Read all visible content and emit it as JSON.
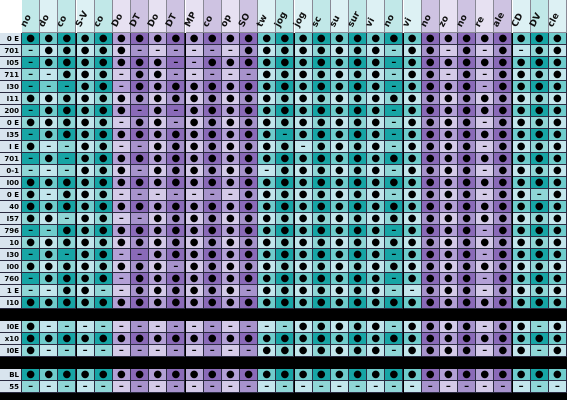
{
  "columns": [
    "no",
    "do",
    "co",
    "S-V",
    "co",
    "Do",
    "DT",
    "Do",
    "DT",
    "MP",
    "co",
    "op",
    "SO",
    "tw",
    "jog",
    "jog",
    "sc",
    "su",
    "sur",
    "vi",
    "no",
    "vi",
    "no",
    "zo",
    "no",
    "re",
    "ale",
    "CD",
    "DV",
    "cle"
  ],
  "groups": [
    {
      "rows": [
        {
          "label": "0 E",
          "cells": [
            "●",
            "●",
            "●",
            "●",
            "●",
            "●",
            "●",
            "●",
            "●",
            "●",
            "●",
            "●",
            "●",
            "●",
            "●",
            "●",
            "●",
            "●",
            "●",
            "●",
            "●",
            "●",
            "●",
            "●",
            "●",
            "●",
            "●",
            "●",
            "●",
            "●"
          ]
        },
        {
          "label": "701",
          "cells": [
            "–",
            "●",
            "●",
            "●",
            "●",
            "●",
            "–",
            "–",
            "–",
            "–",
            "–",
            "–",
            "●",
            "●",
            "●",
            "●",
            "●",
            "●",
            "●",
            "●",
            "–",
            "●",
            "●",
            "–",
            "●",
            "–",
            "●",
            "–",
            "●",
            "●"
          ]
        },
        {
          "label": "I05",
          "cells": [
            "–",
            "●",
            "●",
            "●",
            "●",
            "●",
            "●",
            "●",
            "–",
            "–",
            "●",
            "●",
            "●",
            "●",
            "●",
            "●",
            "●",
            "●",
            "●",
            "●",
            "–",
            "●",
            "●",
            "●",
            "●",
            "●",
            "●",
            "●",
            "●",
            "●"
          ]
        },
        {
          "label": "711",
          "cells": [
            "–",
            "–",
            "●",
            "●",
            "●",
            "–",
            "●",
            "●",
            "–",
            "–",
            "–",
            "–",
            "–",
            "●",
            "●",
            "●",
            "●",
            "●",
            "●",
            "●",
            "–",
            "●",
            "●",
            "–",
            "●",
            "–",
            "●",
            "●",
            "●",
            "●"
          ]
        },
        {
          "label": "I30",
          "cells": [
            "–",
            "–",
            "–",
            "●",
            "●",
            "–",
            "●",
            "●",
            "●",
            "●",
            "●",
            "●",
            "●",
            "●",
            "●",
            "●",
            "●",
            "●",
            "●",
            "●",
            "–",
            "●",
            "●",
            "●",
            "●",
            "–",
            "●",
            "●",
            "●",
            "●"
          ]
        },
        {
          "label": "I11",
          "cells": [
            "●",
            "●",
            "●",
            "●",
            "●",
            "●",
            "●",
            "●",
            "●",
            "●",
            "●",
            "●",
            "●",
            "●",
            "●",
            "●",
            "●",
            "●",
            "●",
            "●",
            "●",
            "●",
            "●",
            "●",
            "●",
            "●",
            "●",
            "●",
            "●",
            "●"
          ]
        },
        {
          "label": "200",
          "cells": [
            "–",
            "●",
            "●",
            "●",
            "●",
            "●",
            "–",
            "●",
            "–",
            "●",
            "●",
            "●",
            "●",
            "●",
            "●",
            "●",
            "●",
            "●",
            "●",
            "●",
            "–",
            "●",
            "●",
            "●",
            "●",
            "●",
            "●",
            "●",
            "●",
            "●"
          ]
        },
        {
          "label": "0 E",
          "cells": [
            "●",
            "●",
            "●",
            "●",
            "●",
            "–",
            "●",
            "●",
            "–",
            "●",
            "●",
            "●",
            "●",
            "●",
            "●",
            "●",
            "●",
            "●",
            "●",
            "●",
            "–",
            "●",
            "●",
            "●",
            "●",
            "–",
            "●",
            "●",
            "●",
            "●"
          ]
        },
        {
          "label": "I35",
          "cells": [
            "–",
            "●",
            "●",
            "●",
            "●",
            "●",
            "●",
            "●",
            "●",
            "●",
            "●",
            "●",
            "●",
            "●",
            "–",
            "●",
            "●",
            "●",
            "●",
            "●",
            "–",
            "●",
            "●",
            "●",
            "●",
            "●",
            "●",
            "●",
            "●",
            "●"
          ]
        },
        {
          "label": "I E",
          "cells": [
            "●",
            "–",
            "–",
            "●",
            "●",
            "–",
            "–",
            "●",
            "●",
            "●",
            "●",
            "●",
            "●",
            "●",
            "●",
            "–",
            "●",
            "●",
            "●",
            "●",
            "–",
            "●",
            "●",
            "●",
            "●",
            "–",
            "●",
            "●",
            "●",
            "●"
          ]
        },
        {
          "label": "701",
          "cells": [
            "–",
            "●",
            "–",
            "●",
            "●",
            "●",
            "●",
            "●",
            "●",
            "●",
            "●",
            "●",
            "●",
            "●",
            "●",
            "●",
            "●",
            "●",
            "●",
            "●",
            "●",
            "●",
            "●",
            "●",
            "●",
            "●",
            "●",
            "●",
            "●",
            "●"
          ]
        },
        {
          "label": "0-1",
          "cells": [
            "–",
            "–",
            "–",
            "●",
            "●",
            "●",
            "–",
            "●",
            "●",
            "●",
            "●",
            "●",
            "●",
            "–",
            "●",
            "●",
            "●",
            "●",
            "●",
            "●",
            "–",
            "●",
            "●",
            "●",
            "●",
            "–",
            "●",
            "●",
            "●",
            "●"
          ]
        },
        {
          "label": "I00",
          "cells": [
            "●",
            "●",
            "●",
            "●",
            "●",
            "●",
            "●",
            "●",
            "●",
            "●",
            "●",
            "●",
            "●",
            "●",
            "●",
            "●",
            "●",
            "●",
            "●",
            "●",
            "●",
            "●",
            "●",
            "●",
            "●",
            "●",
            "●",
            "●",
            "●",
            "●"
          ]
        },
        {
          "label": "0 E",
          "cells": [
            "●",
            "–",
            "●",
            "●",
            "●",
            "–",
            "–",
            "–",
            "–",
            "–",
            "–",
            "–",
            "●",
            "●",
            "●",
            "●",
            "●",
            "●",
            "●",
            "●",
            "–",
            "●",
            "●",
            "●",
            "●",
            "–",
            "●",
            "●",
            "–",
            "●"
          ]
        },
        {
          "label": "40",
          "cells": [
            "●",
            "●",
            "●",
            "●",
            "●",
            "●",
            "●",
            "●",
            "●",
            "●",
            "●",
            "●",
            "●",
            "●",
            "●",
            "●",
            "●",
            "●",
            "●",
            "●",
            "●",
            "●",
            "●",
            "●",
            "●",
            "●",
            "●",
            "●",
            "●",
            "●"
          ]
        },
        {
          "label": "I57",
          "cells": [
            "●",
            "●",
            "–",
            "●",
            "●",
            "–",
            "–",
            "●",
            "●",
            "●",
            "●",
            "●",
            "●",
            "●",
            "●",
            "●",
            "●",
            "●",
            "●",
            "●",
            "●",
            "●",
            "●",
            "●",
            "●",
            "●",
            "●",
            "●",
            "●",
            "●"
          ]
        },
        {
          "label": "796",
          "cells": [
            "–",
            "–",
            "●",
            "●",
            "●",
            "●",
            "●",
            "●",
            "●",
            "●",
            "●",
            "●",
            "●",
            "●",
            "●",
            "●",
            "●",
            "●",
            "●",
            "●",
            "–",
            "●",
            "●",
            "●",
            "●",
            "–",
            "●",
            "●",
            "●",
            "●"
          ]
        },
        {
          "label": "10",
          "cells": [
            "●",
            "●",
            "●",
            "●",
            "●",
            "●",
            "●",
            "●",
            "●",
            "●",
            "●",
            "●",
            "●",
            "●",
            "●",
            "●",
            "●",
            "●",
            "●",
            "●",
            "●",
            "●",
            "●",
            "●",
            "●",
            "●",
            "●",
            "●",
            "●",
            "●"
          ]
        },
        {
          "label": "I30",
          "cells": [
            "–",
            "●",
            "–",
            "●",
            "●",
            "–",
            "–",
            "●",
            "●",
            "●",
            "●",
            "●",
            "●",
            "●",
            "●",
            "●",
            "●",
            "●",
            "●",
            "●",
            "–",
            "●",
            "●",
            "●",
            "●",
            "–",
            "●",
            "●",
            "●",
            "●"
          ]
        },
        {
          "label": "I00",
          "cells": [
            "●",
            "●",
            "●",
            "●",
            "●",
            "●",
            "●",
            "●",
            "–",
            "●",
            "●",
            "●",
            "●",
            "●",
            "●",
            "●",
            "●",
            "●",
            "●",
            "●",
            "●",
            "●",
            "●",
            "●",
            "●",
            "●",
            "●",
            "●",
            "●",
            "●"
          ]
        },
        {
          "label": "760",
          "cells": [
            "–",
            "●",
            "●",
            "●",
            "●",
            "–",
            "●",
            "●",
            "●",
            "●",
            "●",
            "●",
            "●",
            "●",
            "●",
            "●",
            "●",
            "●",
            "●",
            "●",
            "–",
            "●",
            "●",
            "●",
            "●",
            "–",
            "●",
            "●",
            "●",
            "●"
          ]
        },
        {
          "label": "1 E",
          "cells": [
            "–",
            "–",
            "●",
            "●",
            "–",
            "–",
            "●",
            "●",
            "●",
            "●",
            "●",
            "●",
            "–",
            "●",
            "●",
            "●",
            "●",
            "●",
            "●",
            "●",
            "–",
            "–",
            "●",
            "●",
            "●",
            "–",
            "●",
            "●",
            "●",
            "●"
          ]
        },
        {
          "label": "I10",
          "cells": [
            "●",
            "●",
            "●",
            "●",
            "●",
            "●",
            "●",
            "●",
            "●",
            "●",
            "●",
            "●",
            "●",
            "●",
            "●",
            "●",
            "●",
            "●",
            "●",
            "●",
            "●",
            "●",
            "●",
            "●",
            "●",
            "●",
            "●",
            "●",
            "●",
            "●"
          ]
        }
      ]
    },
    {
      "rows": [
        {
          "label": "I0E",
          "cells": [
            "●",
            "–",
            "–",
            "–",
            "–",
            "–",
            "–",
            "–",
            "–",
            "–",
            "–",
            "–",
            "–",
            "–",
            "–",
            "●",
            "●",
            "●",
            "●",
            "●",
            "–",
            "●",
            "●",
            "●",
            "●",
            "–",
            "●",
            "●",
            "–",
            "●"
          ]
        },
        {
          "label": "x10",
          "cells": [
            "●",
            "●",
            "●",
            "●",
            "●",
            "●",
            "●",
            "●",
            "●",
            "●",
            "●",
            "●",
            "●",
            "●",
            "●",
            "●",
            "●",
            "●",
            "●",
            "●",
            "●",
            "●",
            "●",
            "●",
            "●",
            "●",
            "●",
            "●",
            "●",
            "●"
          ]
        },
        {
          "label": "I0E",
          "cells": [
            "●",
            "–",
            "–",
            "–",
            "–",
            "–",
            "–",
            "–",
            "–",
            "–",
            "–",
            "–",
            "–",
            "●",
            "●",
            "●",
            "●",
            "●",
            "●",
            "●",
            "–",
            "●",
            "●",
            "●",
            "●",
            "–",
            "●",
            "●",
            "–",
            "●"
          ]
        }
      ]
    },
    {
      "rows": [
        {
          "label": "BL",
          "cells": [
            "●",
            "●",
            "●",
            "●",
            "●",
            "●",
            "●",
            "●",
            "●",
            "●",
            "●",
            "●",
            "●",
            "●",
            "●",
            "●",
            "●",
            "●",
            "●",
            "●",
            "●",
            "●",
            "●",
            "●",
            "●",
            "●",
            "●",
            "●",
            "●",
            "●"
          ]
        },
        {
          "label": "55",
          "cells": [
            "–",
            "–",
            "–",
            "–",
            "–",
            "–",
            "–",
            "–",
            "–",
            "–",
            "–",
            "–",
            "–",
            "–",
            "–",
            "–",
            "–",
            "–",
            "–",
            "–",
            "–",
            "–",
            "–",
            "–",
            "–",
            "–",
            "–",
            "–",
            "–",
            "–"
          ]
        }
      ]
    }
  ]
}
